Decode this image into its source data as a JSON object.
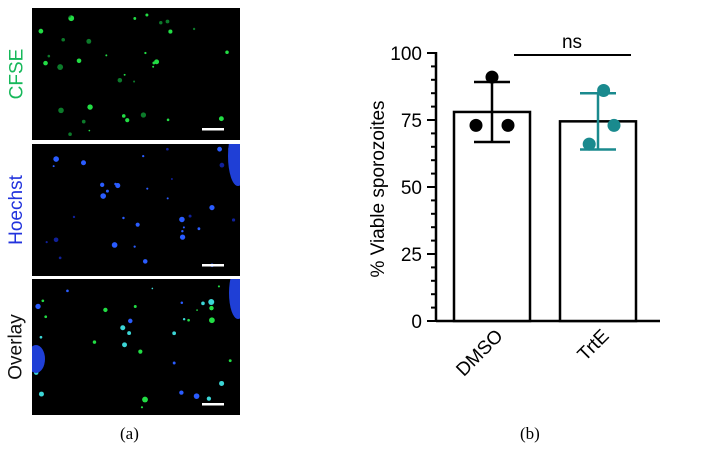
{
  "panel_a": {
    "caption": "(a)",
    "rows": [
      {
        "label": "CFSE",
        "color": "#16b85a"
      },
      {
        "label": "Hoechst",
        "color": "#2233dd"
      },
      {
        "label": "Overlay",
        "color": "#111111"
      }
    ]
  },
  "panel_b": {
    "caption": "(b)"
  },
  "chart_data": {
    "type": "bar",
    "categories": [
      "DMSO",
      "TrtE"
    ],
    "values": [
      78,
      74.5
    ],
    "error": [
      {
        "low": 66.8,
        "high": 89.2
      },
      {
        "low": 64,
        "high": 85
      }
    ],
    "points": [
      {
        "category": "DMSO",
        "y": 91,
        "offset": 0
      },
      {
        "category": "DMSO",
        "y": 73,
        "offset": -1
      },
      {
        "category": "DMSO",
        "y": 73,
        "offset": 1
      },
      {
        "category": "TrtE",
        "y": 86,
        "offset": 0.35
      },
      {
        "category": "TrtE",
        "y": 73,
        "offset": 1
      },
      {
        "category": "TrtE",
        "y": 66,
        "offset": -0.55
      }
    ],
    "point_colors": [
      "#000000",
      "#1a8a8e"
    ],
    "ylabel": "% Viable sporozoites",
    "xlabel": "",
    "ylim": [
      0,
      100
    ],
    "yticks": [
      0,
      25,
      50,
      75,
      100
    ],
    "annotation": "ns"
  }
}
